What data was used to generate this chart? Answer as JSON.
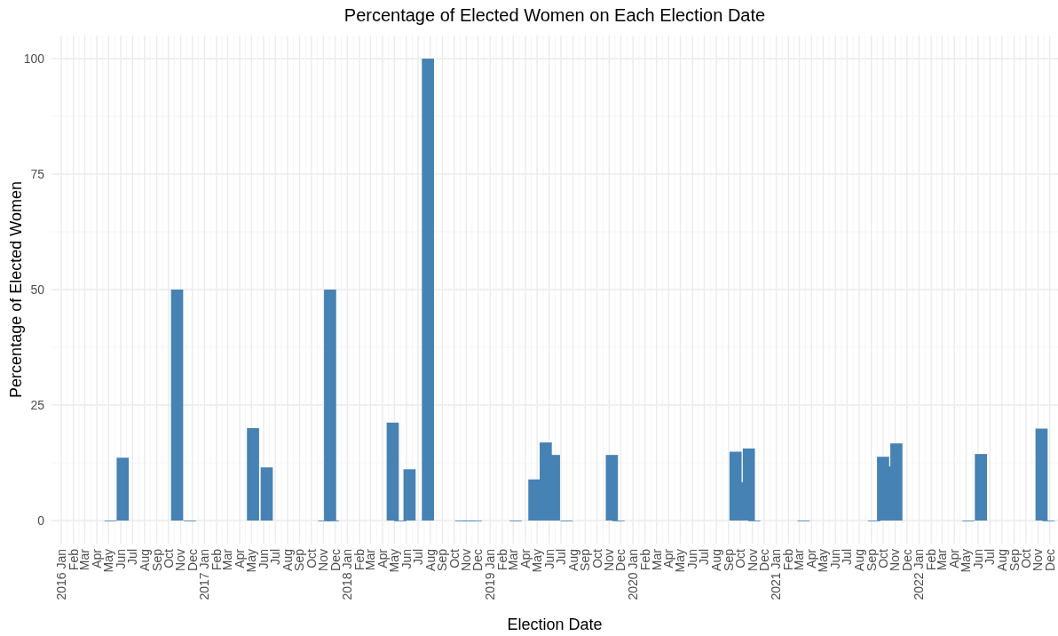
{
  "chart_data": {
    "type": "bar",
    "title": "Percentage of Elected Women on Each Election Date",
    "xlabel": "Election Date",
    "ylabel": "Percentage of Elected Women",
    "color": "#4682b4",
    "x": [
      "2016-05-06",
      "2016-06-06",
      "2016-10-23",
      "2016-11-25",
      "2017-05-05",
      "2017-06-09",
      "2017-11-03",
      "2017-11-18",
      "2017-11-25",
      "2018-04-27",
      "2018-05-16",
      "2018-06-09",
      "2018-07-26",
      "2018-10-19",
      "2018-11-06",
      "2018-11-25",
      "2019-03-07",
      "2019-04-24",
      "2019-05-23",
      "2019-06-13",
      "2019-07-15",
      "2019-11-08",
      "2019-11-25",
      "2020-09-19",
      "2020-10-05",
      "2020-10-23",
      "2020-11-06",
      "2021-03-12",
      "2021-09-08",
      "2021-10-01",
      "2021-10-16",
      "2021-11-04",
      "2022-05-07",
      "2022-06-08",
      "2022-11-10",
      "2022-11-28"
    ],
    "values": [
      0,
      13.6,
      50,
      0,
      20,
      11.5,
      0,
      50,
      0,
      21.2,
      0,
      11.1,
      100,
      0,
      0,
      0,
      0,
      8.9,
      16.9,
      14.2,
      0,
      14.2,
      0,
      14.9,
      8.3,
      15.6,
      0,
      0,
      0,
      13.8,
      11.7,
      16.7,
      0,
      14.4,
      19.9,
      0
    ],
    "xlim": [
      "2015-12-07",
      "2022-12-22"
    ],
    "xticks": [
      {
        "value": "2016-01",
        "label": "2016 Jan"
      },
      {
        "value": "2016-02",
        "label": "Feb"
      },
      {
        "value": "2016-03",
        "label": "Mar"
      },
      {
        "value": "2016-04",
        "label": "Apr"
      },
      {
        "value": "2016-05",
        "label": "May"
      },
      {
        "value": "2016-06",
        "label": "Jun"
      },
      {
        "value": "2016-07",
        "label": "Jul"
      },
      {
        "value": "2016-08",
        "label": "Aug"
      },
      {
        "value": "2016-09",
        "label": "Sep"
      },
      {
        "value": "2016-10",
        "label": "Oct"
      },
      {
        "value": "2016-11",
        "label": "Nov"
      },
      {
        "value": "2016-12",
        "label": "Dec"
      },
      {
        "value": "2017-01",
        "label": "2017 Jan"
      },
      {
        "value": "2017-02",
        "label": "Feb"
      },
      {
        "value": "2017-03",
        "label": "Mar"
      },
      {
        "value": "2017-04",
        "label": "Apr"
      },
      {
        "value": "2017-05",
        "label": "May"
      },
      {
        "value": "2017-06",
        "label": "Jun"
      },
      {
        "value": "2017-07",
        "label": "Jul"
      },
      {
        "value": "2017-08",
        "label": "Aug"
      },
      {
        "value": "2017-09",
        "label": "Sep"
      },
      {
        "value": "2017-10",
        "label": "Oct"
      },
      {
        "value": "2017-11",
        "label": "Nov"
      },
      {
        "value": "2017-12",
        "label": "Dec"
      },
      {
        "value": "2018-01",
        "label": "2018 Jan"
      },
      {
        "value": "2018-02",
        "label": "Feb"
      },
      {
        "value": "2018-03",
        "label": "Mar"
      },
      {
        "value": "2018-04",
        "label": "Apr"
      },
      {
        "value": "2018-05",
        "label": "May"
      },
      {
        "value": "2018-06",
        "label": "Jun"
      },
      {
        "value": "2018-07",
        "label": "Jul"
      },
      {
        "value": "2018-08",
        "label": "Aug"
      },
      {
        "value": "2018-09",
        "label": "Sep"
      },
      {
        "value": "2018-10",
        "label": "Oct"
      },
      {
        "value": "2018-11",
        "label": "Nov"
      },
      {
        "value": "2018-12",
        "label": "Dec"
      },
      {
        "value": "2019-01",
        "label": "2019 Jan"
      },
      {
        "value": "2019-02",
        "label": "Feb"
      },
      {
        "value": "2019-03",
        "label": "Mar"
      },
      {
        "value": "2019-04",
        "label": "Apr"
      },
      {
        "value": "2019-05",
        "label": "May"
      },
      {
        "value": "2019-06",
        "label": "Jun"
      },
      {
        "value": "2019-07",
        "label": "Jul"
      },
      {
        "value": "2019-08",
        "label": "Aug"
      },
      {
        "value": "2019-09",
        "label": "Sep"
      },
      {
        "value": "2019-10",
        "label": "Oct"
      },
      {
        "value": "2019-11",
        "label": "Nov"
      },
      {
        "value": "2019-12",
        "label": "Dec"
      },
      {
        "value": "2020-01",
        "label": "2020 Jan"
      },
      {
        "value": "2020-02",
        "label": "Feb"
      },
      {
        "value": "2020-03",
        "label": "Mar"
      },
      {
        "value": "2020-04",
        "label": "Apr"
      },
      {
        "value": "2020-05",
        "label": "May"
      },
      {
        "value": "2020-06",
        "label": "Jun"
      },
      {
        "value": "2020-07",
        "label": "Jul"
      },
      {
        "value": "2020-08",
        "label": "Aug"
      },
      {
        "value": "2020-09",
        "label": "Sep"
      },
      {
        "value": "2020-10",
        "label": "Oct"
      },
      {
        "value": "2020-11",
        "label": "Nov"
      },
      {
        "value": "2020-12",
        "label": "Dec"
      },
      {
        "value": "2021-01",
        "label": "2021 Jan"
      },
      {
        "value": "2021-02",
        "label": "Feb"
      },
      {
        "value": "2021-03",
        "label": "Mar"
      },
      {
        "value": "2021-04",
        "label": "Apr"
      },
      {
        "value": "2021-05",
        "label": "May"
      },
      {
        "value": "2021-06",
        "label": "Jun"
      },
      {
        "value": "2021-07",
        "label": "Jul"
      },
      {
        "value": "2021-08",
        "label": "Aug"
      },
      {
        "value": "2021-09",
        "label": "Sep"
      },
      {
        "value": "2021-10",
        "label": "Oct"
      },
      {
        "value": "2021-11",
        "label": "Nov"
      },
      {
        "value": "2021-12",
        "label": "Dec"
      },
      {
        "value": "2022-01",
        "label": "2022 Jan"
      },
      {
        "value": "2022-02",
        "label": "Feb"
      },
      {
        "value": "2022-03",
        "label": "Mar"
      },
      {
        "value": "2022-04",
        "label": "Apr"
      },
      {
        "value": "2022-05",
        "label": "May"
      },
      {
        "value": "2022-06",
        "label": "Jun"
      },
      {
        "value": "2022-07",
        "label": "Jul"
      },
      {
        "value": "2022-08",
        "label": "Aug"
      },
      {
        "value": "2022-09",
        "label": "Sep"
      },
      {
        "value": "2022-10",
        "label": "Oct"
      },
      {
        "value": "2022-11",
        "label": "Nov"
      },
      {
        "value": "2022-12",
        "label": "Dec"
      }
    ],
    "ylim": [
      -5,
      105
    ],
    "yticks": [
      0,
      25,
      50,
      75,
      100
    ],
    "grid": true
  }
}
